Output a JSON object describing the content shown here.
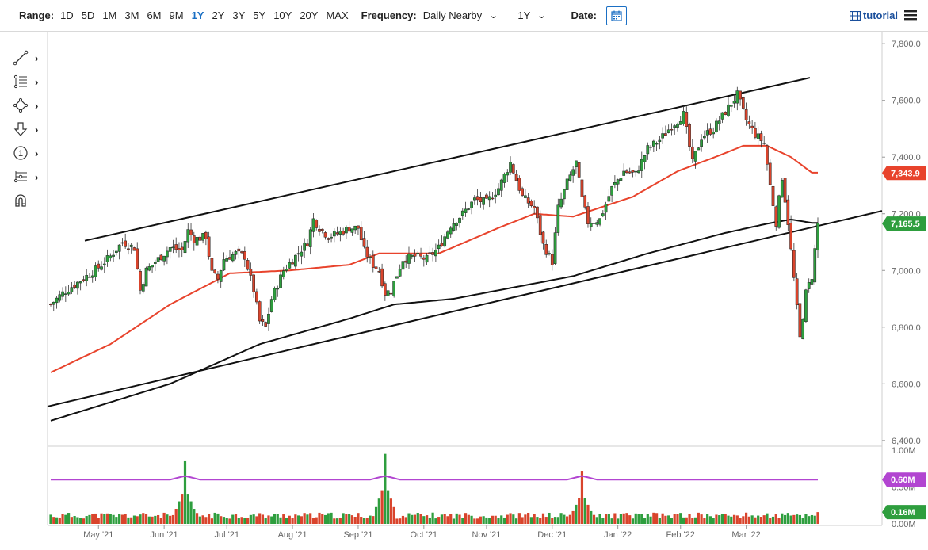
{
  "toolbar": {
    "range_label": "Range:",
    "ranges": [
      "1D",
      "5D",
      "1M",
      "3M",
      "6M",
      "9M",
      "1Y",
      "2Y",
      "3Y",
      "5Y",
      "10Y",
      "20Y",
      "MAX"
    ],
    "active_range": "1Y",
    "frequency_label": "Frequency:",
    "frequency_value": "Daily Nearby",
    "period_value": "1Y",
    "date_label": "Date:",
    "tutorial_label": "tutorial"
  },
  "icons": {
    "drawing_tools": [
      "trendline-icon",
      "fibonacci-icon",
      "shapes-icon",
      "arrow-down-icon",
      "annotation-icon",
      "gann-icon",
      "magnet-icon"
    ],
    "calendar": "calendar-icon",
    "menu": "hamburger-menu-icon",
    "tutorial": "film-icon"
  },
  "colors": {
    "up_candle": "#2e9e3e",
    "down_candle": "#d9442c",
    "ma_short": "#e8432c",
    "ma_long": "#111111",
    "price_badge_red": "#e8432c",
    "price_badge_green": "#2e9e3e",
    "volume_avg_line": "#b245d1",
    "link_blue": "#1a6fc4"
  },
  "chart_data": {
    "type": "candlestick",
    "x_tick_labels": [
      "May '21",
      "Jun '21",
      "Jul '21",
      "Aug '21",
      "Sep '21",
      "Oct '21",
      "Nov '21",
      "Dec '21",
      "Jan '22",
      "Feb '22",
      "Mar '22"
    ],
    "price_axis": {
      "ticks": [
        "7,800.0",
        "7,600.0",
        "7,400.0",
        "7,200.0",
        "7,000.0",
        "6,800.0",
        "6,600.0",
        "6,400.0"
      ],
      "range": [
        6380,
        7820
      ]
    },
    "volume_axis": {
      "ticks": [
        "1.00M",
        "0.50M",
        "0.00M"
      ],
      "range": [
        0,
        1.0
      ]
    },
    "last_price_label": "7,165.5",
    "ma_short_value_label": "7,343.9",
    "volume_avg_label": "0.60M",
    "volume_last_label": "0.16M",
    "trendlines": [
      {
        "name": "upper-channel-line",
        "from": [
          "Apr '21",
          7105
        ],
        "to": [
          "Mar '22",
          7680
        ]
      },
      {
        "name": "lower-channel-line",
        "from": [
          "Apr '21",
          6520
        ],
        "to": [
          "Mar '22",
          7210
        ]
      }
    ],
    "price_anchors": [
      [
        0,
        6880
      ],
      [
        4,
        6920
      ],
      [
        8,
        6950
      ],
      [
        12,
        6980
      ],
      [
        16,
        7010
      ],
      [
        20,
        7050
      ],
      [
        24,
        7100
      ],
      [
        28,
        7080
      ],
      [
        30,
        6930
      ],
      [
        32,
        7000
      ],
      [
        36,
        7040
      ],
      [
        40,
        7080
      ],
      [
        44,
        7070
      ],
      [
        46,
        7140
      ],
      [
        48,
        7110
      ],
      [
        52,
        7120
      ],
      [
        54,
        6990
      ],
      [
        56,
        6970
      ],
      [
        58,
        7040
      ],
      [
        62,
        7060
      ],
      [
        65,
        7050
      ],
      [
        68,
        6930
      ],
      [
        70,
        6820
      ],
      [
        72,
        6800
      ],
      [
        74,
        6900
      ],
      [
        76,
        6950
      ],
      [
        78,
        7000
      ],
      [
        82,
        7050
      ],
      [
        86,
        7100
      ],
      [
        88,
        7180
      ],
      [
        90,
        7150
      ],
      [
        93,
        7120
      ],
      [
        96,
        7130
      ],
      [
        100,
        7150
      ],
      [
        103,
        7150
      ],
      [
        105,
        7070
      ],
      [
        108,
        7020
      ],
      [
        110,
        7000
      ],
      [
        112,
        6920
      ],
      [
        114,
        6930
      ],
      [
        118,
        7040
      ],
      [
        122,
        7050
      ],
      [
        126,
        7040
      ],
      [
        130,
        7080
      ],
      [
        134,
        7160
      ],
      [
        138,
        7200
      ],
      [
        142,
        7250
      ],
      [
        146,
        7240
      ],
      [
        150,
        7290
      ],
      [
        154,
        7380
      ],
      [
        158,
        7260
      ],
      [
        162,
        7220
      ],
      [
        165,
        7090
      ],
      [
        168,
        7030
      ],
      [
        170,
        7220
      ],
      [
        173,
        7310
      ],
      [
        176,
        7380
      ],
      [
        178,
        7250
      ],
      [
        180,
        7170
      ],
      [
        184,
        7180
      ],
      [
        188,
        7290
      ],
      [
        192,
        7350
      ],
      [
        196,
        7340
      ],
      [
        200,
        7430
      ],
      [
        204,
        7460
      ],
      [
        208,
        7510
      ],
      [
        212,
        7550
      ],
      [
        215,
        7380
      ],
      [
        218,
        7470
      ],
      [
        222,
        7500
      ],
      [
        226,
        7560
      ],
      [
        230,
        7620
      ],
      [
        233,
        7530
      ],
      [
        236,
        7480
      ],
      [
        239,
        7450
      ],
      [
        241,
        7300
      ],
      [
        243,
        7170
      ],
      [
        245,
        7330
      ],
      [
        247,
        7170
      ],
      [
        249,
        6970
      ],
      [
        251,
        6760
      ],
      [
        253,
        6920
      ],
      [
        255,
        6980
      ],
      [
        257,
        7165
      ]
    ],
    "ma_short_anchors": [
      [
        0,
        6640
      ],
      [
        20,
        6740
      ],
      [
        40,
        6880
      ],
      [
        60,
        6990
      ],
      [
        80,
        7000
      ],
      [
        100,
        7020
      ],
      [
        110,
        7060
      ],
      [
        130,
        7060
      ],
      [
        150,
        7150
      ],
      [
        162,
        7200
      ],
      [
        175,
        7190
      ],
      [
        195,
        7260
      ],
      [
        210,
        7350
      ],
      [
        225,
        7410
      ],
      [
        232,
        7440
      ],
      [
        240,
        7440
      ],
      [
        248,
        7400
      ],
      [
        255,
        7345
      ]
    ],
    "ma_long_anchors": [
      [
        0,
        6470
      ],
      [
        40,
        6600
      ],
      [
        70,
        6740
      ],
      [
        100,
        6830
      ],
      [
        115,
        6880
      ],
      [
        135,
        6900
      ],
      [
        160,
        6950
      ],
      [
        175,
        6980
      ],
      [
        200,
        7060
      ],
      [
        225,
        7130
      ],
      [
        240,
        7165
      ],
      [
        248,
        7180
      ],
      [
        255,
        7168
      ]
    ],
    "volume_spikes": [
      [
        45,
        0.85
      ],
      [
        112,
        0.95
      ],
      [
        178,
        0.72
      ]
    ],
    "volume_avg_level": 0.6,
    "volume_baseline": 0.14,
    "volume_last": 0.16
  }
}
